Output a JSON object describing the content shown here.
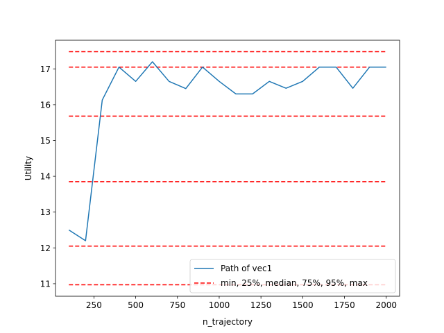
{
  "chart_data": {
    "type": "line",
    "title": "",
    "xlabel": "n_trajectory",
    "ylabel": "Utility",
    "xlim": [
      20,
      2080
    ],
    "ylim": [
      10.65,
      17.8
    ],
    "xticks": [
      250,
      500,
      750,
      1000,
      1250,
      1500,
      1750,
      2000
    ],
    "xtick_labels": [
      "250",
      "500",
      "750",
      "1000",
      "1250",
      "1500",
      "1750",
      "2000"
    ],
    "yticks": [
      11,
      12,
      13,
      14,
      15,
      16,
      17
    ],
    "ytick_labels": [
      "11",
      "12",
      "13",
      "14",
      "15",
      "16",
      "17"
    ],
    "grid": false,
    "legend_position": "lower-right",
    "series": [
      {
        "name": "Path of vec1",
        "color": "#1f77b4",
        "style": "solid",
        "x": [
          100,
          200,
          300,
          400,
          500,
          600,
          700,
          800,
          900,
          1000,
          1100,
          1200,
          1300,
          1400,
          1500,
          1600,
          1700,
          1800,
          1900,
          2000
        ],
        "y": [
          12.5,
          12.2,
          16.13,
          17.05,
          16.65,
          17.2,
          16.65,
          16.45,
          17.05,
          16.65,
          16.3,
          16.3,
          16.65,
          16.46,
          16.65,
          17.05,
          17.05,
          16.46,
          17.05,
          17.05
        ]
      }
    ],
    "reference_lines": {
      "name": "min, 25%, median, 75%, 95%, max",
      "color": "#ff0000",
      "style": "dashed",
      "x_range": [
        100,
        2000
      ],
      "values": [
        10.97,
        12.05,
        13.85,
        15.68,
        17.05,
        17.48
      ]
    }
  }
}
